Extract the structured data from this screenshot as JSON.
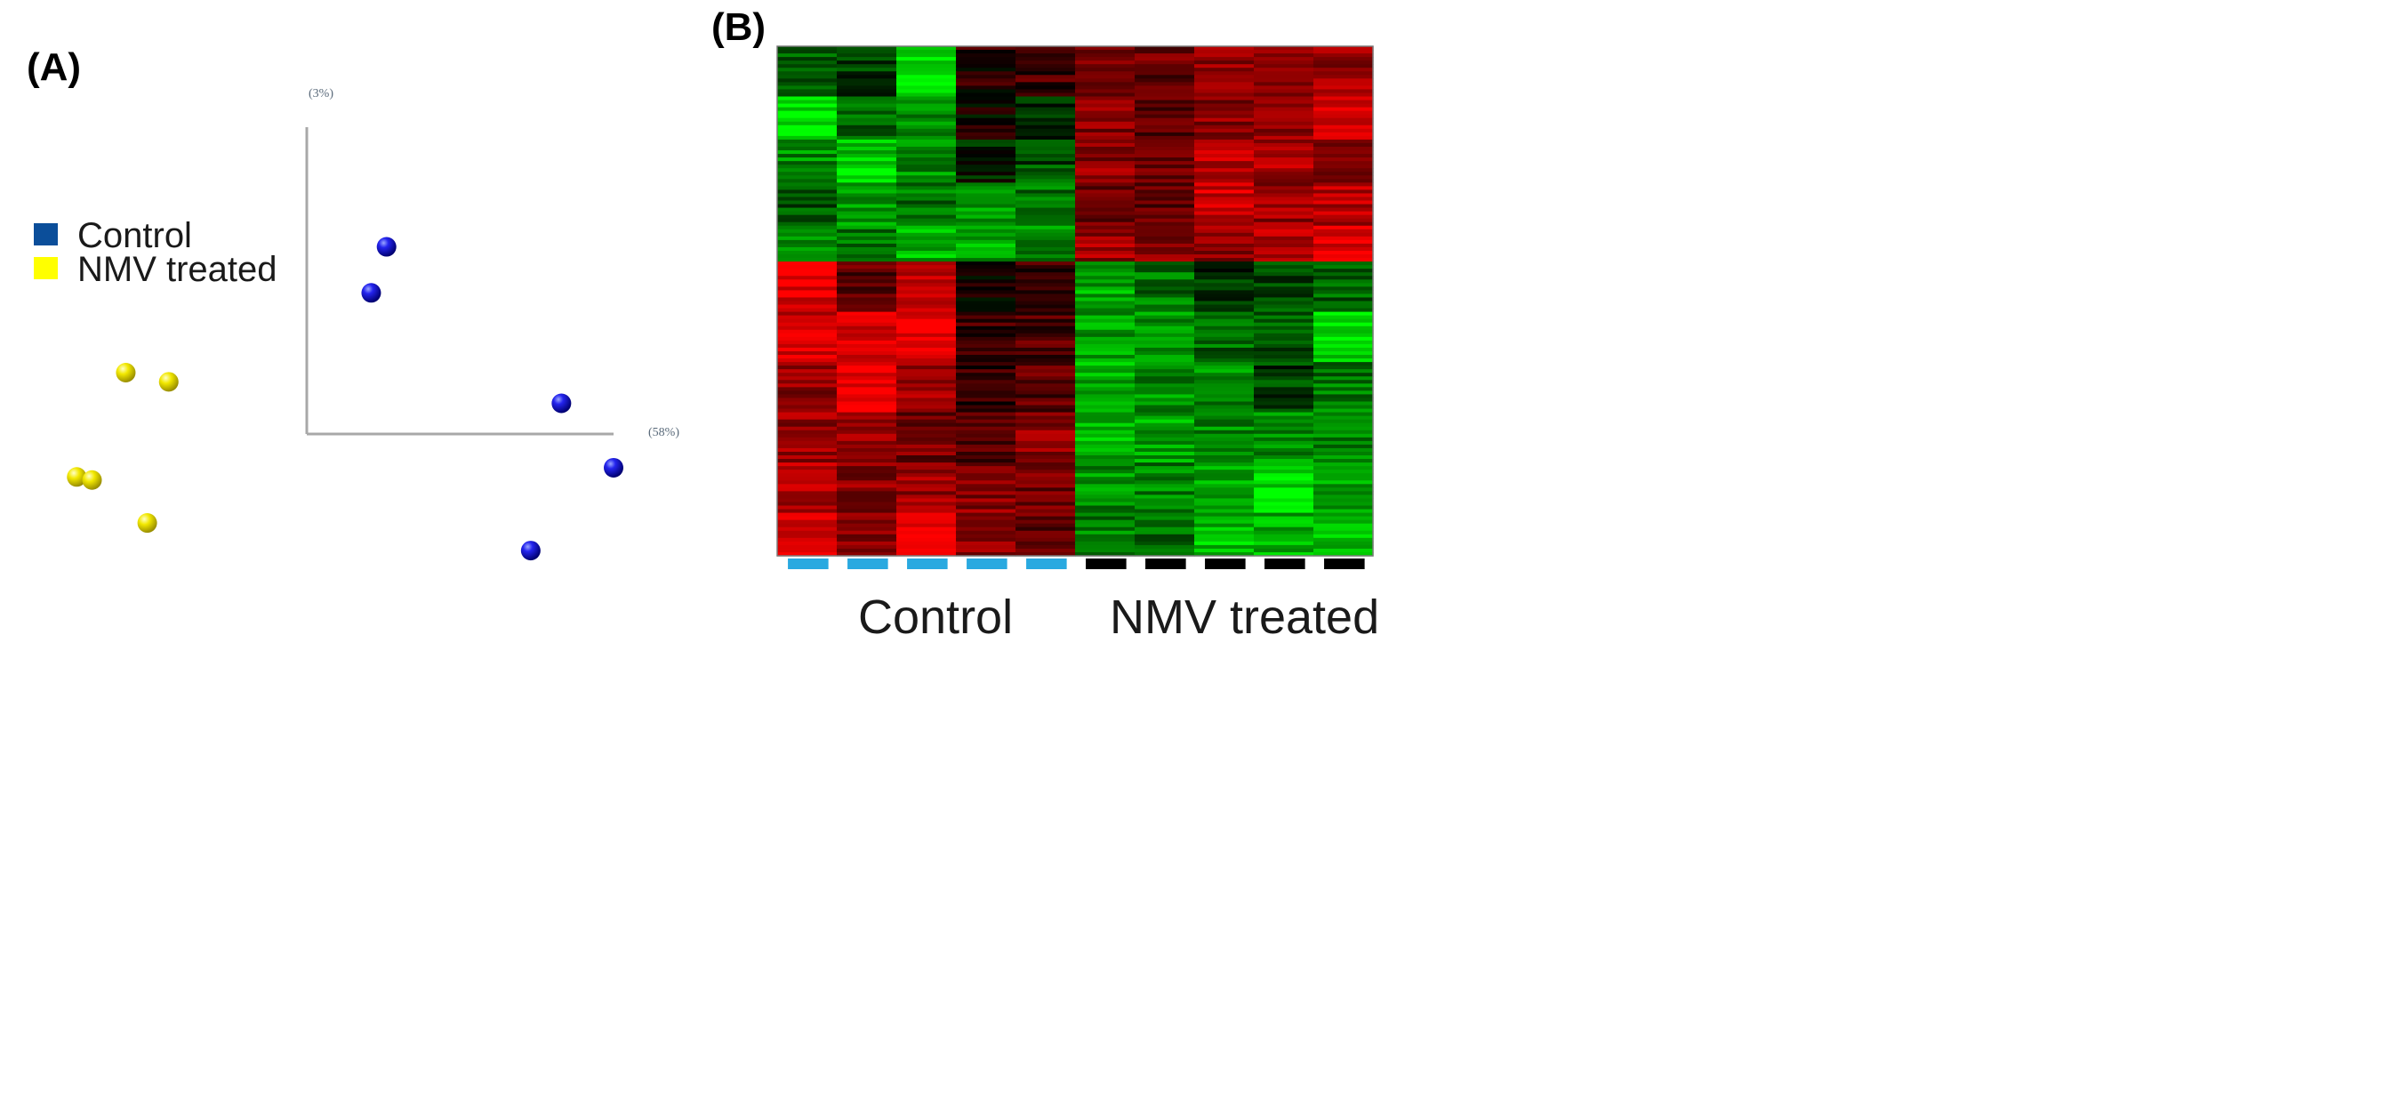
{
  "chart_data": [
    {
      "panel": "(A)",
      "type": "scatter",
      "axes": {
        "x_label": "(58%)",
        "y_label": "(3%)"
      },
      "legend": [
        {
          "label": "Control",
          "color": "#0b4e9a"
        },
        {
          "label": "NMV treated",
          "color": "#ffff00"
        }
      ],
      "series": [
        {
          "name": "Control",
          "color": "#1a1aff",
          "points": [
            {
              "x": 0.26,
              "y": 0.61
            },
            {
              "x": 0.21,
              "y": 0.46
            },
            {
              "x": 0.83,
              "y": 0.1
            },
            {
              "x": 1.0,
              "y": -0.11
            },
            {
              "x": 0.73,
              "y": -0.38
            }
          ]
        },
        {
          "name": "NMV treated",
          "color": "#ffff00",
          "points": [
            {
              "x": -0.59,
              "y": 0.2
            },
            {
              "x": -0.45,
              "y": 0.17
            },
            {
              "x": -0.75,
              "y": -0.14
            },
            {
              "x": -0.7,
              "y": -0.15
            },
            {
              "x": -0.52,
              "y": -0.29
            }
          ]
        }
      ]
    },
    {
      "panel": "(B)",
      "type": "heatmap",
      "colormap": {
        "low": "#00ff00",
        "mid": "#000000",
        "high": "#ff0000"
      },
      "columns": 10,
      "groups": [
        {
          "label": "Control",
          "columns": 5,
          "bar_color": "#29a9e0"
        },
        {
          "label": "NMV treated",
          "columns": 5,
          "bar_color": "#000000"
        }
      ],
      "row_profile": [
        {
          "rows": 14,
          "values": [
            -0.35,
            -0.25,
            -0.85,
            0.15,
            0.25,
            0.45,
            0.4,
            0.55,
            0.5,
            0.6
          ]
        },
        {
          "rows": 12,
          "values": [
            -0.9,
            -0.4,
            -0.5,
            0.05,
            -0.15,
            0.5,
            0.3,
            0.55,
            0.6,
            0.75
          ]
        },
        {
          "rows": 12,
          "values": [
            -0.55,
            -0.8,
            -0.55,
            -0.1,
            -0.3,
            0.55,
            0.45,
            0.7,
            0.65,
            0.55
          ]
        },
        {
          "rows": 12,
          "values": [
            -0.35,
            -0.6,
            -0.45,
            -0.55,
            -0.45,
            0.45,
            0.35,
            0.8,
            0.6,
            0.7
          ]
        },
        {
          "rows": 10,
          "values": [
            -0.55,
            -0.45,
            -0.7,
            -0.65,
            -0.55,
            0.6,
            0.5,
            0.55,
            0.7,
            0.85
          ]
        },
        {
          "rows": 14,
          "values": [
            0.9,
            0.35,
            0.7,
            0.1,
            0.2,
            -0.65,
            -0.45,
            -0.2,
            -0.3,
            -0.35
          ]
        },
        {
          "rows": 14,
          "values": [
            0.8,
            0.8,
            0.95,
            0.25,
            0.3,
            -0.6,
            -0.55,
            -0.4,
            -0.3,
            -0.85
          ]
        },
        {
          "rows": 14,
          "values": [
            0.55,
            0.95,
            0.65,
            0.2,
            0.35,
            -0.7,
            -0.55,
            -0.55,
            -0.25,
            -0.45
          ]
        },
        {
          "rows": 14,
          "values": [
            0.6,
            0.65,
            0.45,
            0.3,
            0.55,
            -0.7,
            -0.65,
            -0.55,
            -0.55,
            -0.5
          ]
        },
        {
          "rows": 14,
          "values": [
            0.7,
            0.55,
            0.6,
            0.55,
            0.45,
            -0.55,
            -0.5,
            -0.7,
            -0.85,
            -0.6
          ]
        },
        {
          "rows": 12,
          "values": [
            0.75,
            0.5,
            0.85,
            0.6,
            0.35,
            -0.5,
            -0.4,
            -0.75,
            -0.7,
            -0.7
          ]
        }
      ]
    }
  ]
}
